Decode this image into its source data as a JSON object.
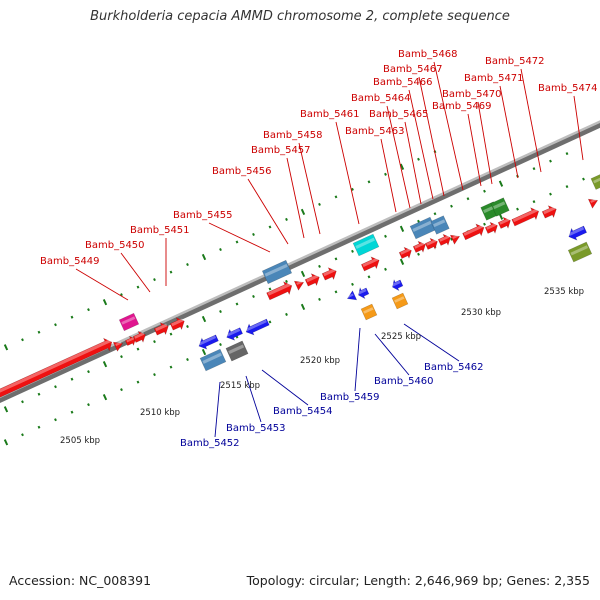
{
  "title": "Burkholderia cepacia AMMD chromosome 2, complete sequence",
  "footer": {
    "accession": "Accession: NC_008391",
    "summary": "Topology: circular; Length: 2,646,969 bp; Genes: 2,355"
  },
  "colors": {
    "backbone_light": "#bdbdbd",
    "backbone_dark": "#6e6e6e",
    "tick": "#1a7a1a",
    "label_upper": "#cc0000",
    "label_lower": "#000099",
    "red": "#ee1111",
    "blue": "#1a1aee",
    "steelblue": "#4a86b8",
    "cyan": "#00d6d6",
    "magenta": "#e0158f",
    "green": "#2a8a2a",
    "olive": "#7a9a2a",
    "orange": "#f59a18",
    "gray": "#666666"
  },
  "scale_labels": [
    "2505 kbp",
    "2510 kbp",
    "2515 kbp",
    "2520 kbp",
    "2525 kbp",
    "2530 kbp",
    "2535 kbp"
  ],
  "genes_upper": [
    "Bamb_5449",
    "Bamb_5450",
    "Bamb_5451",
    "Bamb_5455",
    "Bamb_5456",
    "Bamb_5457",
    "Bamb_5458",
    "Bamb_5461",
    "Bamb_5463",
    "Bamb_5464",
    "Bamb_5465",
    "Bamb_5466",
    "Bamb_5467",
    "Bamb_5468",
    "Bamb_5469",
    "Bamb_5470",
    "Bamb_5471",
    "Bamb_5472",
    "Bamb_5474"
  ],
  "genes_lower": [
    "Bamb_5452",
    "Bamb_5453",
    "Bamb_5454",
    "Bamb_5459",
    "Bamb_5460",
    "Bamb_5462"
  ]
}
